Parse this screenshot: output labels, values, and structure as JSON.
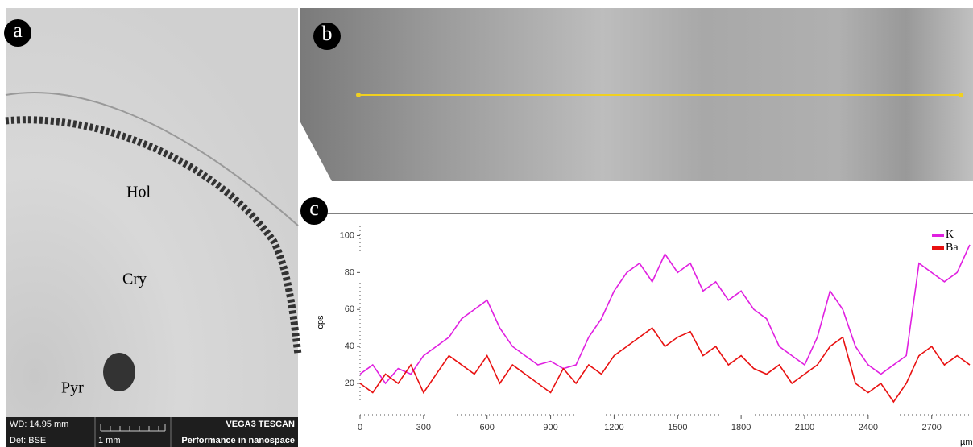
{
  "panels": {
    "a": {
      "label": "a",
      "regions": [
        "Hol",
        "Cry",
        "Pyr"
      ],
      "info": {
        "wd": "WD: 14.95 mm",
        "det": "Det: BSE",
        "scale": "1 mm",
        "brand": "VEGA3 TESCAN",
        "slogan": "Performance in nanospace"
      }
    },
    "b": {
      "label": "b"
    },
    "c": {
      "label": "c"
    }
  },
  "chart_data": {
    "type": "line",
    "x": [
      0,
      60,
      120,
      180,
      240,
      300,
      360,
      420,
      480,
      540,
      600,
      660,
      720,
      780,
      840,
      900,
      960,
      1020,
      1080,
      1140,
      1200,
      1260,
      1320,
      1380,
      1440,
      1500,
      1560,
      1620,
      1680,
      1740,
      1800,
      1860,
      1920,
      1980,
      2040,
      2100,
      2160,
      2220,
      2280,
      2340,
      2400,
      2460,
      2520,
      2580,
      2640,
      2700,
      2760,
      2820,
      2880
    ],
    "series": [
      {
        "name": "K",
        "color": "#e020e0",
        "values": [
          25,
          30,
          20,
          28,
          25,
          35,
          40,
          45,
          55,
          60,
          65,
          50,
          40,
          35,
          30,
          32,
          28,
          30,
          45,
          55,
          70,
          80,
          85,
          75,
          90,
          80,
          85,
          70,
          75,
          65,
          70,
          60,
          55,
          40,
          35,
          30,
          45,
          70,
          60,
          40,
          30,
          25,
          30,
          35,
          85,
          80,
          75,
          80,
          95
        ]
      },
      {
        "name": "Ba",
        "color": "#e81010",
        "values": [
          20,
          15,
          25,
          20,
          30,
          15,
          25,
          35,
          30,
          25,
          35,
          20,
          30,
          25,
          20,
          15,
          28,
          20,
          30,
          25,
          35,
          40,
          45,
          50,
          40,
          45,
          48,
          35,
          40,
          30,
          35,
          28,
          25,
          30,
          20,
          25,
          30,
          40,
          45,
          20,
          15,
          20,
          10,
          20,
          35,
          40,
          30,
          35,
          30
        ]
      }
    ],
    "y_label": "cps",
    "x_label": "µm",
    "xlim": [
      0,
      2880
    ],
    "xticks": [
      0,
      300,
      600,
      900,
      1200,
      1500,
      1800,
      2100,
      2400,
      2700
    ],
    "ylim": [
      3,
      105
    ],
    "yticks": [
      20,
      40,
      60,
      80,
      100
    ],
    "legend": "top-right"
  }
}
